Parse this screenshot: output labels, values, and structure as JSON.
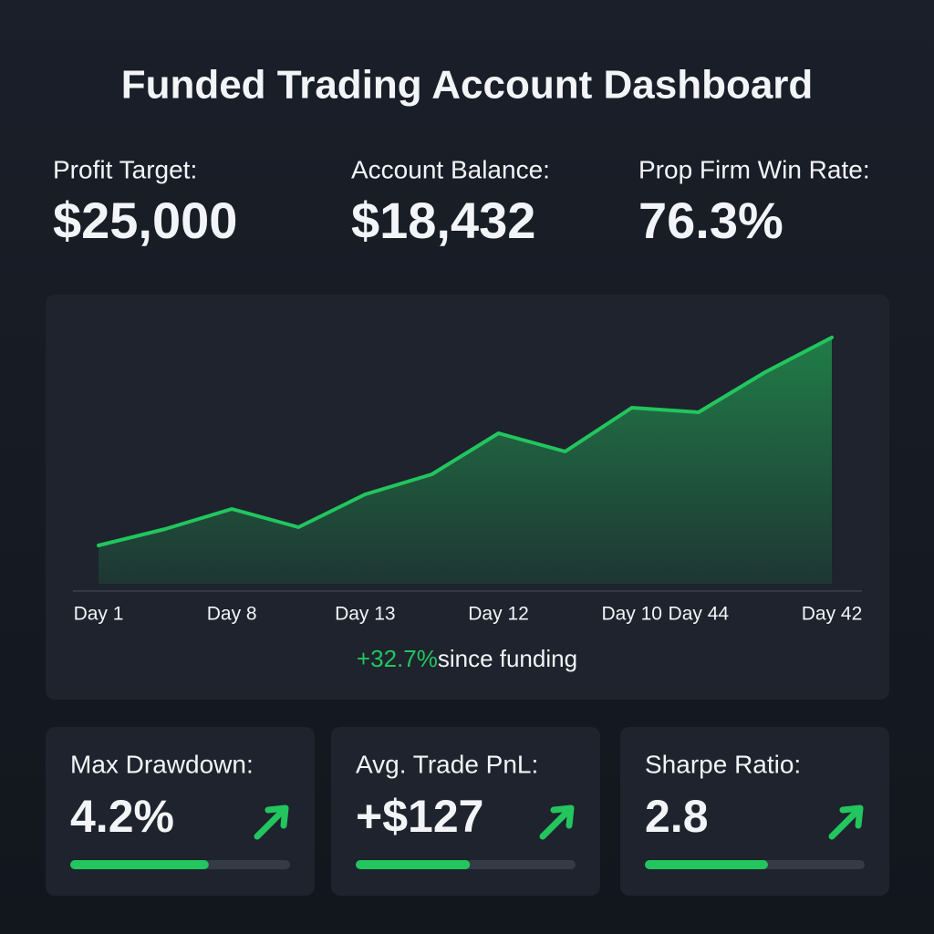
{
  "header": {
    "title": "Funded Trading Account Dashboard"
  },
  "stats": [
    {
      "label": "Profit Target:",
      "value": "$25,000"
    },
    {
      "label": "Account Balance:",
      "value": "$18,432"
    },
    {
      "label": "Prop Firm Win Rate:",
      "value": "76.3%"
    }
  ],
  "chart_data": {
    "type": "area",
    "categories": [
      "Day 1",
      null,
      "Day 8",
      null,
      "Day 13",
      null,
      "Day 12",
      null,
      "Day 10",
      "Day 44",
      null,
      "Day 42"
    ],
    "values": [
      42,
      60,
      82,
      62,
      98,
      120,
      165,
      145,
      193,
      188,
      232,
      270
    ],
    "color": "#22c55e",
    "ylim": [
      0,
      300
    ],
    "annotation": {
      "change": "+32.7%",
      "text": "since funding"
    }
  },
  "cards": [
    {
      "label": "Max Drawdown:",
      "value": "4.2%",
      "progress": 63
    },
    {
      "label": "Avg. Trade PnL:",
      "value": "+$127",
      "progress": 52
    },
    {
      "label": "Sharpe Ratio:",
      "value": "2.8",
      "progress": 56
    }
  ]
}
